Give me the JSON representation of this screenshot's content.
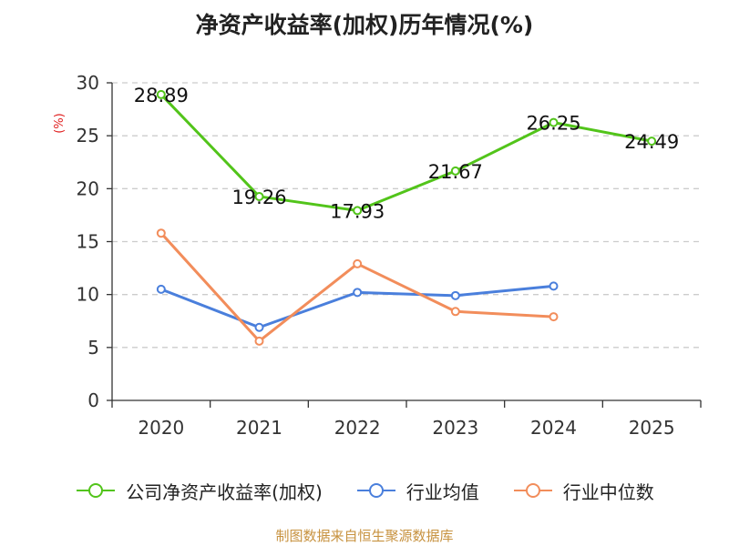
{
  "chart_data": {
    "type": "line",
    "title": "净资产收益率(加权)历年情况(%)",
    "xlabel": "",
    "ylabel": "(%)",
    "categories": [
      "2020",
      "2021",
      "2022",
      "2023",
      "2024",
      "2025"
    ],
    "ylim": [
      0,
      30
    ],
    "yticks": [
      0,
      5,
      10,
      15,
      20,
      25,
      30
    ],
    "grid": true,
    "legend_position": "bottom",
    "series": [
      {
        "name": "公司净资产收益率(加权)",
        "color": "#52c41a",
        "values": [
          28.89,
          19.26,
          17.93,
          21.67,
          26.25,
          24.49
        ],
        "value_labels": [
          "28.89",
          "19.26",
          "17.93",
          "21.67",
          "26.25",
          "24.49"
        ]
      },
      {
        "name": "行业均值",
        "color": "#4a7fdc",
        "values": [
          10.5,
          6.9,
          10.2,
          9.9,
          10.8,
          null
        ]
      },
      {
        "name": "行业中位数",
        "color": "#f28d5b",
        "values": [
          15.8,
          5.6,
          12.9,
          8.4,
          7.9,
          null
        ]
      }
    ]
  },
  "footer": {
    "source": "制图数据来自恒生聚源数据库"
  }
}
